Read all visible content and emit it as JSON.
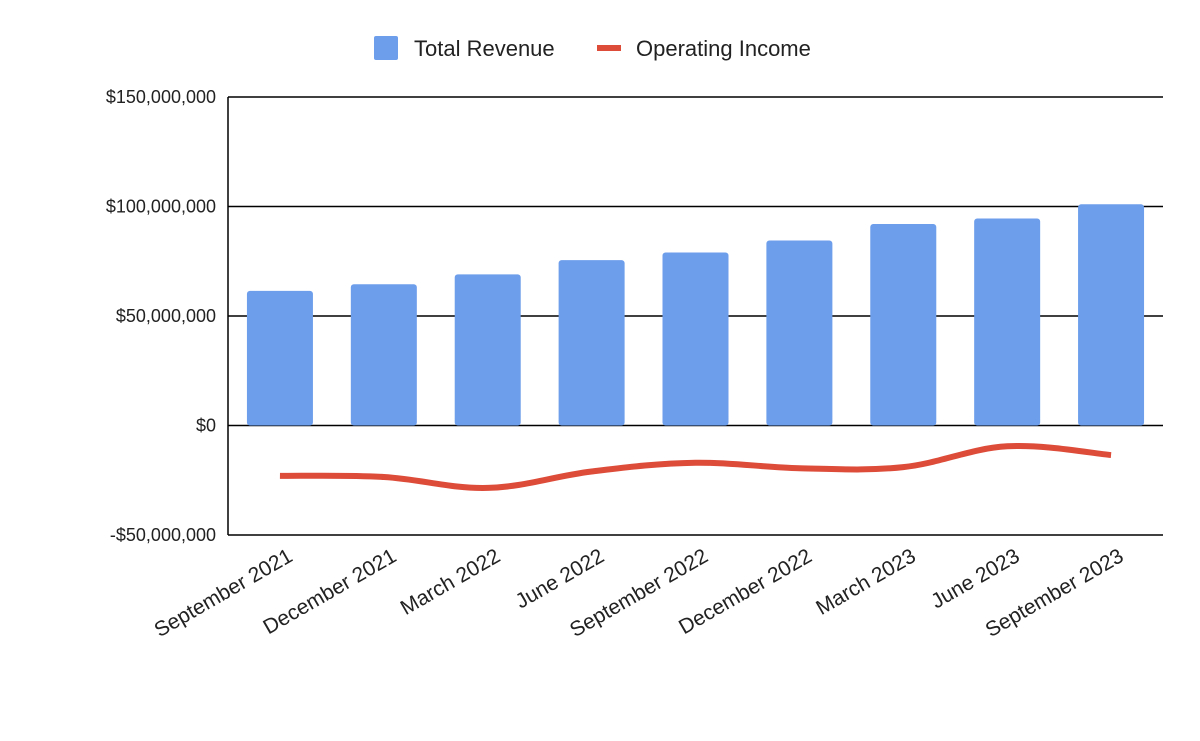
{
  "chart_data": {
    "type": "bar",
    "categories": [
      "September 2021",
      "December 2021",
      "March 2022",
      "June 2022",
      "September 2022",
      "December 2022",
      "March 2023",
      "June 2023",
      "September 2023"
    ],
    "series": [
      {
        "name": "Total Revenue",
        "type": "bar",
        "color": "#6d9eeb",
        "values": [
          61500000,
          64500000,
          69000000,
          75500000,
          79000000,
          84500000,
          92000000,
          94500000,
          101000000
        ]
      },
      {
        "name": "Operating Income",
        "type": "line",
        "color": "#dd4b39",
        "values": [
          -23000000,
          -23500000,
          -28500000,
          -21000000,
          -17000000,
          -19500000,
          -19000000,
          -9500000,
          -13500000
        ]
      }
    ],
    "yticks": [
      -50000000,
      0,
      50000000,
      100000000,
      150000000
    ],
    "ytick_labels": [
      "-$50,000,000",
      "$0",
      "$50,000,000",
      "$100,000,000",
      "$150,000,000"
    ],
    "ylim": [
      -50000000,
      150000000
    ],
    "grid": true,
    "legend_position": "top"
  }
}
